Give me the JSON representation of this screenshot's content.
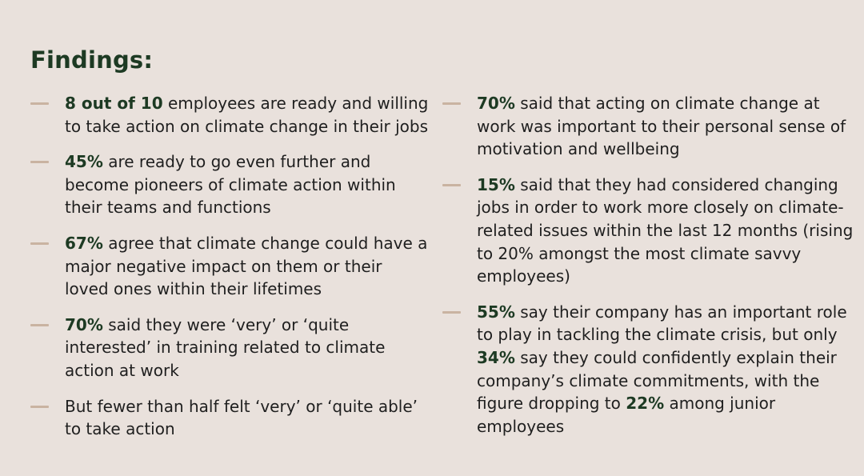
{
  "title": "Findings:",
  "left": [
    {
      "bold": "8 out of 10",
      "text": " employees are ready and willing to take action on climate change in their jobs"
    },
    {
      "bold": "45%",
      "text": " are ready to go even further and become pioneers of climate action within their teams and functions"
    },
    {
      "bold": "67%",
      "text": " agree that climate change could have a major negative impact on them or their loved ones within their lifetimes"
    },
    {
      "bold": "70%",
      "text": " said they were ‘very’ or ‘quite interested’ in training related to climate action at work"
    },
    {
      "bold": "",
      "text": "But fewer than half felt ‘very’ or ‘quite able’ to take action"
    }
  ],
  "right": [
    {
      "bold": "70%",
      "text": " said that acting on climate change at work was important to their personal sense of motivation and wellbeing"
    },
    {
      "bold": "15%",
      "text": " said that they had considered changing jobs in order to work more closely on climate-related issues within the last 12 months (rising to 20% amongst the most climate savvy employees)"
    },
    {
      "bold": "55%",
      "text": " say their company has an important role to play in tackling the climate crisis, but only ",
      "bold2": "34%",
      "text2": " say they could confidently explain their company’s climate commitments, with the figure dropping to ",
      "bold3": "22%",
      "text3": " among junior employees"
    }
  ]
}
